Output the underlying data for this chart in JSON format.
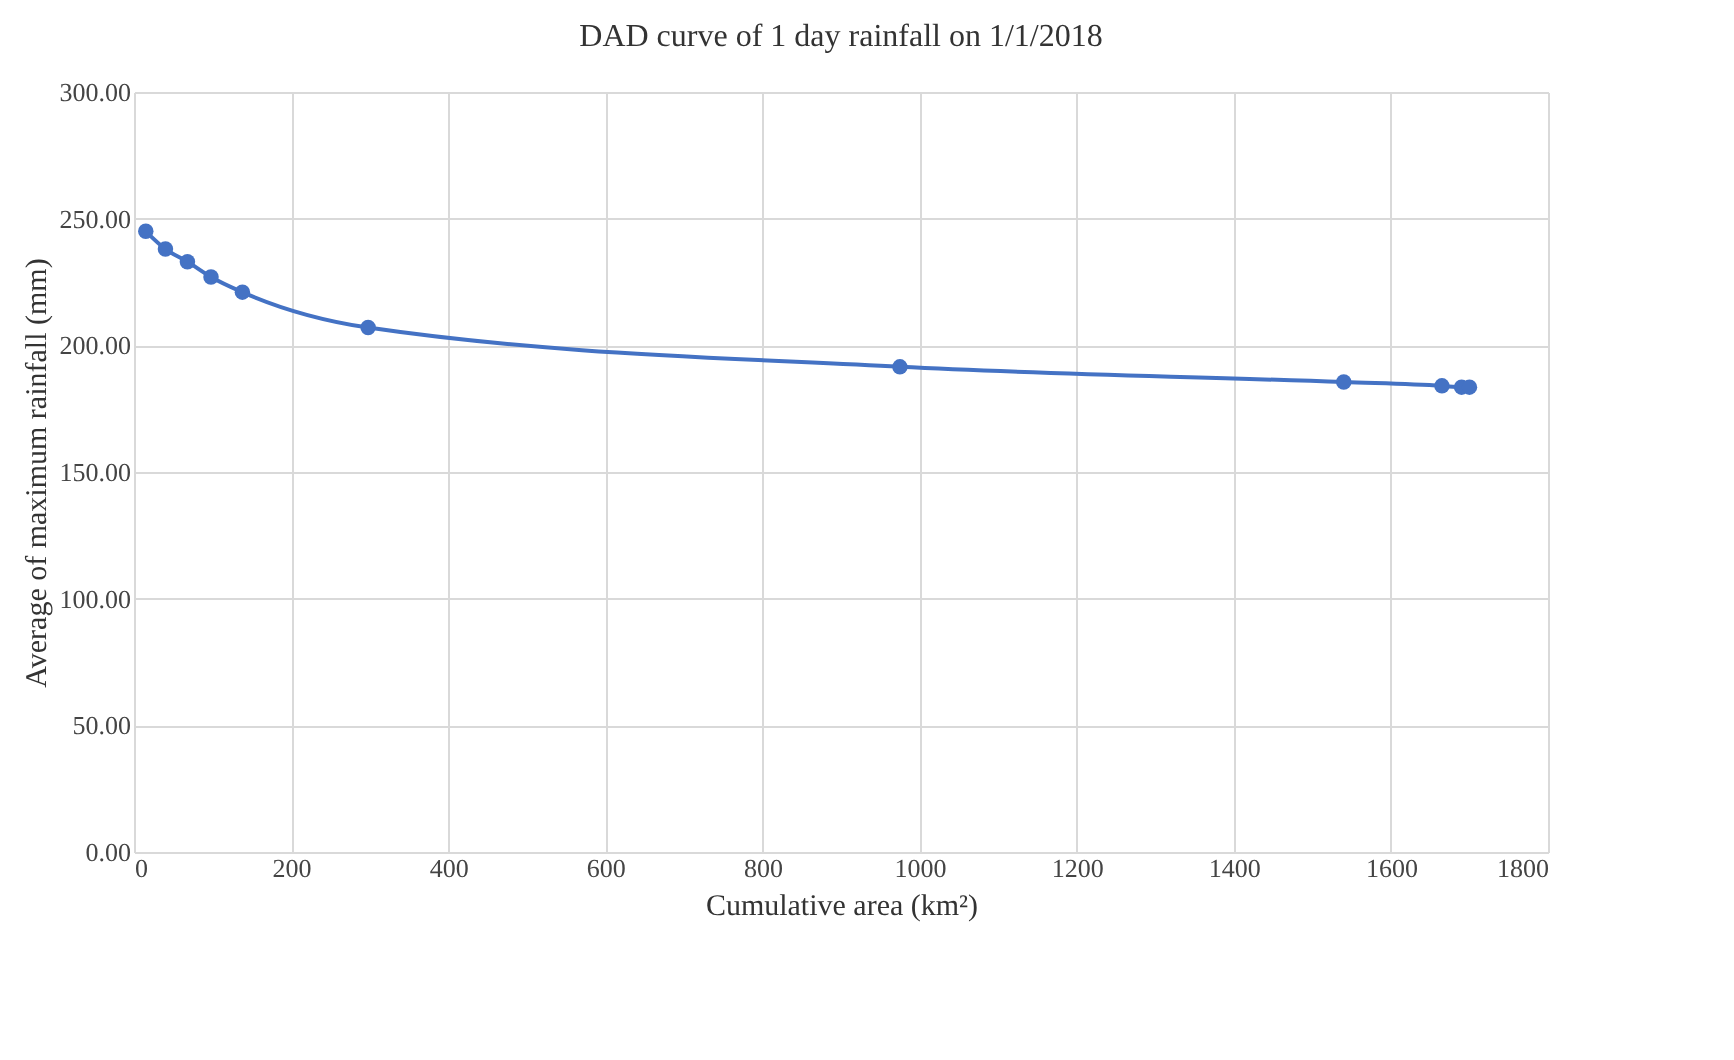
{
  "chart_data": {
    "type": "line",
    "title": "DAD curve of 1 day rainfall  on 1/1/2018",
    "xlabel": "Cumulative area (km²)",
    "ylabel": "Average of maximum rainfall (mm)",
    "x": [
      15,
      40,
      68,
      98,
      138,
      298,
      975,
      1540,
      1665,
      1690,
      1700
    ],
    "series": [
      {
        "color": "#4472c4",
        "values": [
          245,
          238,
          233,
          227,
          221,
          207,
          191.5,
          185.5,
          184,
          183.5,
          183.5
        ]
      }
    ],
    "xlim": [
      0,
      1800
    ],
    "xticks": [
      0,
      200,
      400,
      600,
      800,
      1000,
      1200,
      1400,
      1600,
      1800
    ],
    "ylim": [
      0,
      300
    ],
    "yticks": [
      {
        "value": 0,
        "label": "0.00"
      },
      {
        "value": 50,
        "label": "50.00"
      },
      {
        "value": 100,
        "label": "100.00"
      },
      {
        "value": 150,
        "label": "150.00"
      },
      {
        "value": 200,
        "label": "200.00"
      },
      {
        "value": 250,
        "label": "250.00"
      },
      {
        "value": 300,
        "label": "300.00"
      }
    ],
    "grid": true,
    "marker": "circle"
  }
}
